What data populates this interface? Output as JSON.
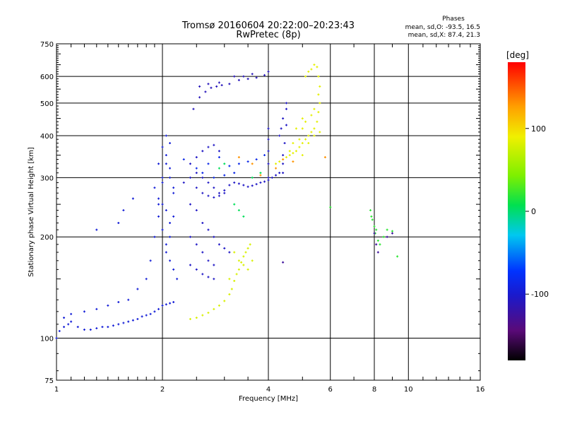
{
  "chart_data": {
    "type": "scatter",
    "title": "Tromsø 20160604 20:22:00–20:23:43",
    "subtitle": "RwPretec (8p)",
    "xlabel": "Frequency [MHz]",
    "ylabel": "Stationary phase Virtual Height [km]",
    "x_scale": "log",
    "y_scale": "log",
    "xlim": [
      1,
      16
    ],
    "ylim": [
      75,
      750
    ],
    "x_ticks": [
      1,
      2,
      4,
      6,
      8,
      10,
      16
    ],
    "x_tick_labels": [
      "1",
      "2",
      "4",
      "6",
      "8",
      "10",
      "16"
    ],
    "y_ticks": [
      75,
      100,
      200,
      300,
      400,
      500,
      600,
      750
    ],
    "y_tick_labels": [
      "75",
      "100",
      "200",
      "300",
      "400",
      "500",
      "600",
      "750"
    ],
    "grid": true,
    "phases_box": {
      "title": "Phases",
      "line1": "mean, sd,O: -93.5, 16.5",
      "line2": "mean, sd,X:  87.4, 21.3"
    },
    "colorbar": {
      "label": "[deg]",
      "range": [
        -180,
        180
      ],
      "ticks": [
        100,
        0,
        -100
      ],
      "tick_labels": [
        "100",
        "0",
        "-100"
      ],
      "colormap": "rainbow (black-purple-blue-cyan-green-yellow-orange-red)"
    },
    "series": [
      {
        "phase_deg": -95,
        "points": [
          [
            1.0,
            100
          ],
          [
            1.02,
            105
          ],
          [
            1.05,
            108
          ],
          [
            1.08,
            110
          ],
          [
            1.1,
            112
          ],
          [
            1.15,
            108
          ],
          [
            1.2,
            106
          ],
          [
            1.25,
            106
          ],
          [
            1.3,
            107
          ],
          [
            1.35,
            108
          ],
          [
            1.4,
            108
          ],
          [
            1.45,
            109
          ],
          [
            1.5,
            110
          ],
          [
            1.55,
            111
          ],
          [
            1.6,
            112
          ],
          [
            1.65,
            113
          ],
          [
            1.7,
            114
          ],
          [
            1.75,
            116
          ],
          [
            1.8,
            117
          ],
          [
            1.85,
            118
          ],
          [
            1.9,
            120
          ],
          [
            1.95,
            122
          ],
          [
            2.0,
            125
          ],
          [
            2.05,
            126
          ],
          [
            2.1,
            127
          ],
          [
            2.15,
            128
          ],
          [
            1.05,
            115
          ],
          [
            1.1,
            118
          ],
          [
            1.2,
            120
          ],
          [
            1.3,
            122
          ],
          [
            1.4,
            125
          ],
          [
            1.5,
            128
          ],
          [
            1.6,
            130
          ],
          [
            1.7,
            140
          ],
          [
            1.8,
            150
          ],
          [
            1.3,
            210
          ],
          [
            1.5,
            220
          ],
          [
            1.55,
            240
          ],
          [
            1.65,
            260
          ],
          [
            1.85,
            170
          ],
          [
            1.9,
            200
          ],
          [
            1.95,
            230
          ],
          [
            2.0,
            250
          ],
          [
            2.0,
            300
          ],
          [
            2.05,
            350
          ],
          [
            2.1,
            380
          ],
          [
            1.95,
            330
          ],
          [
            2.0,
            370
          ],
          [
            2.05,
            400
          ],
          [
            2.1,
            320
          ],
          [
            2.15,
            280
          ],
          [
            2.0,
            210
          ],
          [
            2.05,
            190
          ],
          [
            2.1,
            170
          ],
          [
            2.15,
            160
          ],
          [
            2.2,
            150
          ],
          [
            1.9,
            280
          ],
          [
            1.95,
            260
          ],
          [
            2.05,
            240
          ],
          [
            2.1,
            220
          ],
          [
            2.15,
            270
          ],
          [
            2.1,
            300
          ],
          [
            2.05,
            330
          ],
          [
            2.0,
            290
          ],
          [
            1.95,
            250
          ],
          [
            2.05,
            180
          ],
          [
            2.1,
            200
          ],
          [
            2.15,
            230
          ]
        ]
      },
      {
        "phase_deg": -105,
        "points": [
          [
            2.3,
            290
          ],
          [
            2.4,
            300
          ],
          [
            2.5,
            310
          ],
          [
            2.6,
            300
          ],
          [
            2.7,
            290
          ],
          [
            2.8,
            280
          ],
          [
            2.9,
            270
          ],
          [
            3.0,
            275
          ],
          [
            3.1,
            285
          ],
          [
            3.2,
            290
          ],
          [
            3.3,
            288
          ],
          [
            3.4,
            285
          ],
          [
            3.5,
            282
          ],
          [
            3.6,
            284
          ],
          [
            3.7,
            287
          ],
          [
            3.8,
            290
          ],
          [
            3.9,
            292
          ],
          [
            4.0,
            295
          ],
          [
            4.1,
            300
          ],
          [
            4.2,
            305
          ],
          [
            4.3,
            310
          ],
          [
            4.4,
            330
          ],
          [
            4.45,
            380
          ],
          [
            4.5,
            430
          ],
          [
            4.5,
            480
          ],
          [
            2.4,
            330
          ],
          [
            2.5,
            345
          ],
          [
            2.6,
            360
          ],
          [
            2.7,
            370
          ],
          [
            2.8,
            375
          ],
          [
            2.9,
            360
          ],
          [
            2.5,
            280
          ],
          [
            2.6,
            270
          ],
          [
            2.7,
            265
          ],
          [
            2.8,
            262
          ],
          [
            2.9,
            265
          ],
          [
            3.0,
            270
          ],
          [
            2.4,
            250
          ],
          [
            2.5,
            240
          ],
          [
            2.6,
            220
          ],
          [
            2.7,
            210
          ],
          [
            2.8,
            200
          ],
          [
            2.9,
            190
          ],
          [
            3.0,
            185
          ],
          [
            3.1,
            180
          ],
          [
            2.4,
            200
          ],
          [
            2.5,
            190
          ],
          [
            2.6,
            180
          ],
          [
            2.7,
            170
          ],
          [
            2.8,
            165
          ],
          [
            2.4,
            165
          ],
          [
            2.5,
            160
          ],
          [
            2.6,
            155
          ],
          [
            2.7,
            152
          ],
          [
            2.8,
            150
          ]
        ]
      },
      {
        "phase_deg": -110,
        "points": [
          [
            2.45,
            480
          ],
          [
            2.55,
            520
          ],
          [
            2.65,
            540
          ],
          [
            2.75,
            555
          ],
          [
            2.85,
            560
          ],
          [
            2.95,
            565
          ],
          [
            3.1,
            570
          ],
          [
            3.3,
            585
          ],
          [
            3.5,
            590
          ],
          [
            3.7,
            595
          ],
          [
            3.9,
            605
          ],
          [
            4.0,
            620
          ],
          [
            2.55,
            560
          ],
          [
            2.7,
            570
          ],
          [
            2.9,
            575
          ],
          [
            3.2,
            600
          ],
          [
            3.4,
            600
          ],
          [
            3.6,
            610
          ]
        ]
      },
      {
        "phase_deg": -105,
        "points": [
          [
            4.0,
            300
          ],
          [
            4.0,
            330
          ],
          [
            4.0,
            360
          ],
          [
            4.0,
            390
          ],
          [
            4.0,
            420
          ],
          [
            4.4,
            310
          ],
          [
            4.4,
            350
          ],
          [
            4.3,
            400
          ],
          [
            4.4,
            450
          ],
          [
            4.5,
            500
          ],
          [
            4.35,
            420
          ]
        ]
      },
      {
        "phase_deg": -85,
        "points": [
          [
            2.3,
            340
          ],
          [
            2.5,
            320
          ],
          [
            2.7,
            330
          ],
          [
            2.9,
            345
          ],
          [
            3.1,
            325
          ],
          [
            3.3,
            330
          ],
          [
            3.5,
            335
          ],
          [
            3.7,
            340
          ],
          [
            3.9,
            350
          ],
          [
            3.0,
            305
          ],
          [
            3.2,
            310
          ],
          [
            2.8,
            300
          ],
          [
            2.6,
            310
          ]
        ]
      },
      {
        "phase_deg": 5,
        "points": [
          [
            3.2,
            250
          ],
          [
            3.3,
            240
          ],
          [
            3.4,
            230
          ],
          [
            2.9,
            320
          ],
          [
            3.0,
            330
          ],
          [
            3.6,
            300
          ],
          [
            3.8,
            310
          ]
        ]
      },
      {
        "phase_deg": 80,
        "points": [
          [
            2.4,
            114
          ],
          [
            2.5,
            115
          ],
          [
            2.6,
            117
          ],
          [
            2.7,
            119
          ],
          [
            2.8,
            122
          ],
          [
            2.9,
            125
          ],
          [
            3.0,
            129
          ],
          [
            3.1,
            135
          ],
          [
            3.15,
            140
          ],
          [
            3.2,
            148
          ],
          [
            3.25,
            155
          ],
          [
            3.3,
            160
          ],
          [
            3.35,
            168
          ],
          [
            3.4,
            175
          ],
          [
            3.45,
            180
          ],
          [
            3.5,
            185
          ],
          [
            3.55,
            190
          ],
          [
            3.3,
            170
          ],
          [
            3.4,
            165
          ],
          [
            3.2,
            180
          ],
          [
            3.1,
            150
          ],
          [
            3.5,
            160
          ],
          [
            3.6,
            170
          ]
        ]
      },
      {
        "phase_deg": 85,
        "points": [
          [
            4.2,
            330
          ],
          [
            4.3,
            335
          ],
          [
            4.4,
            340
          ],
          [
            4.5,
            345
          ],
          [
            4.6,
            350
          ],
          [
            4.7,
            355
          ],
          [
            4.8,
            360
          ],
          [
            4.9,
            370
          ],
          [
            5.0,
            380
          ],
          [
            5.1,
            390
          ],
          [
            5.2,
            400
          ],
          [
            5.3,
            410
          ],
          [
            5.4,
            420
          ],
          [
            5.5,
            440
          ],
          [
            5.55,
            470
          ],
          [
            5.6,
            500
          ],
          [
            5.55,
            530
          ],
          [
            5.6,
            560
          ],
          [
            5.55,
            600
          ],
          [
            5.5,
            640
          ],
          [
            5.4,
            650
          ],
          [
            5.3,
            630
          ],
          [
            5.2,
            620
          ],
          [
            5.1,
            600
          ],
          [
            4.9,
            390
          ],
          [
            5.0,
            420
          ],
          [
            5.1,
            440
          ],
          [
            5.3,
            460
          ],
          [
            5.4,
            480
          ],
          [
            4.6,
            360
          ],
          [
            5.0,
            350
          ],
          [
            5.2,
            380
          ],
          [
            5.4,
            400
          ],
          [
            5.6,
            410
          ],
          [
            4.7,
            380
          ],
          [
            4.8,
            420
          ],
          [
            5.0,
            450
          ]
        ]
      },
      {
        "phase_deg": 130,
        "points": [
          [
            3.3,
            345
          ],
          [
            3.6,
            330
          ],
          [
            4.2,
            320
          ],
          [
            4.4,
            340
          ],
          [
            4.7,
            335
          ],
          [
            5.8,
            345
          ],
          [
            3.8,
            305
          ]
        ]
      },
      {
        "phase_deg": 20,
        "points": [
          [
            7.8,
            240
          ],
          [
            7.85,
            230
          ],
          [
            7.9,
            225
          ],
          [
            8.0,
            215
          ],
          [
            8.05,
            205
          ],
          [
            8.1,
            210
          ],
          [
            8.2,
            195
          ],
          [
            8.3,
            190
          ],
          [
            8.5,
            200
          ],
          [
            8.7,
            210
          ],
          [
            9.0,
            208
          ],
          [
            9.3,
            175
          ],
          [
            6.0,
            245
          ]
        ]
      },
      {
        "phase_deg": -125,
        "points": [
          [
            8.0,
            205
          ],
          [
            8.1,
            190
          ],
          [
            8.2,
            180
          ],
          [
            9.0,
            205
          ],
          [
            8.7,
            200
          ],
          [
            4.4,
            168
          ]
        ]
      }
    ]
  }
}
